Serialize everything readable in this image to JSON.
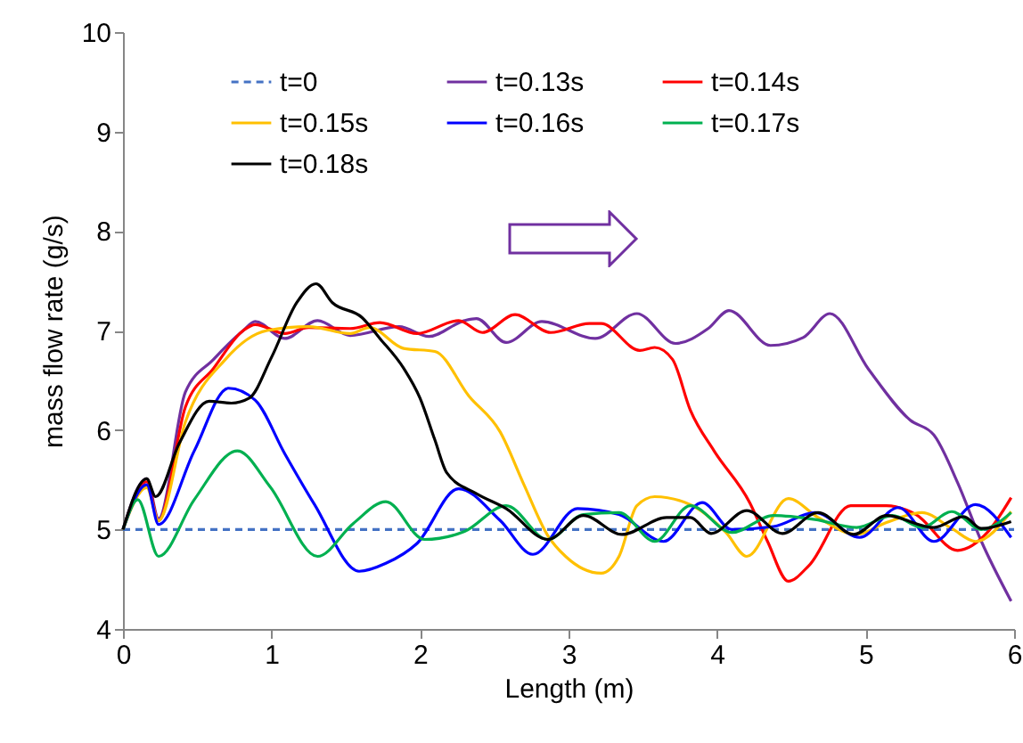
{
  "chart_data": {
    "type": "line",
    "xlabel": "Length (m)",
    "ylabel": "mass flow rate (g/s)",
    "xlim": [
      0,
      6
    ],
    "xticks": [
      0,
      1,
      2,
      3,
      4,
      5,
      6
    ],
    "ylim": [
      4,
      10
    ],
    "yticks": [
      4,
      5,
      6,
      7,
      8,
      9,
      10
    ],
    "grid": false,
    "legend": "top left",
    "marker": "none",
    "series": [
      {
        "name": "t=0",
        "color": "#4472c4",
        "line_style": "dashed",
        "x": [
          0,
          6
        ],
        "values": [
          5,
          5
        ]
      },
      {
        "name": "t=0.13s",
        "color": "#7030a0",
        "x": [
          0,
          0.16,
          0.24,
          0.42,
          0.61,
          0.81,
          0.89,
          1.09,
          1.31,
          1.53,
          1.86,
          2.06,
          2.3,
          2.38,
          2.58,
          2.82,
          3.18,
          3.46,
          3.72,
          3.94,
          4.08,
          4.36,
          4.58,
          4.76,
          5.02,
          5.3,
          5.46,
          5.62,
          5.78,
          5.98
        ],
        "values": [
          5,
          5.51,
          5.11,
          6.38,
          6.71,
          7.0,
          7.09,
          6.92,
          7.1,
          6.95,
          7.04,
          6.94,
          7.1,
          7.12,
          6.88,
          7.09,
          6.92,
          7.17,
          6.87,
          7.02,
          7.2,
          6.85,
          6.93,
          7.17,
          6.61,
          6.1,
          5.95,
          5.47,
          4.88,
          4.28
        ]
      },
      {
        "name": "t=0.14s",
        "color": "#ff0000",
        "x": [
          0,
          0.16,
          0.24,
          0.42,
          0.61,
          0.81,
          0.89,
          1.09,
          1.25,
          1.53,
          1.73,
          1.98,
          2.26,
          2.42,
          2.64,
          2.88,
          3.14,
          3.22,
          3.48,
          3.58,
          3.7,
          3.82,
          3.98,
          4.22,
          4.34,
          4.48,
          4.62,
          4.9,
          5.14,
          5.34,
          5.62,
          5.82,
          5.98
        ],
        "values": [
          5,
          5.48,
          5.09,
          6.23,
          6.62,
          7.0,
          7.06,
          6.97,
          7.03,
          7.02,
          7.08,
          6.97,
          7.1,
          6.98,
          7.16,
          6.98,
          7.07,
          7.07,
          6.8,
          6.83,
          6.71,
          6.2,
          5.79,
          5.27,
          4.88,
          4.48,
          4.64,
          5.24,
          5.24,
          5.15,
          4.79,
          4.97,
          5.32
        ]
      },
      {
        "name": "t=0.15s",
        "color": "#ffc000",
        "x": [
          0,
          0.16,
          0.24,
          0.42,
          0.69,
          0.97,
          1.25,
          1.53,
          1.66,
          1.89,
          2.1,
          2.33,
          2.54,
          2.7,
          2.86,
          2.98,
          3.22,
          3.34,
          3.46,
          3.58,
          3.82,
          4.06,
          4.2,
          4.48,
          4.68,
          4.94,
          5.14,
          5.38,
          5.58,
          5.74,
          5.98
        ],
        "values": [
          5,
          5.42,
          5.09,
          6.08,
          6.71,
          7.0,
          7.04,
          6.97,
          7.03,
          6.82,
          6.79,
          6.34,
          5.98,
          5.45,
          4.94,
          4.73,
          4.56,
          4.73,
          5.24,
          5.33,
          5.25,
          4.97,
          4.73,
          5.31,
          5.12,
          4.95,
          5.07,
          5.17,
          5.01,
          4.88,
          5.18
        ]
      },
      {
        "name": "t=0.16s",
        "color": "#0000ff",
        "x": [
          0,
          0.16,
          0.24,
          0.48,
          0.71,
          0.89,
          1.09,
          1.29,
          1.59,
          1.77,
          1.98,
          2.26,
          2.54,
          2.76,
          3.06,
          3.34,
          3.64,
          3.9,
          4.1,
          4.38,
          4.66,
          4.96,
          5.22,
          5.46,
          5.74,
          5.98
        ],
        "values": [
          5,
          5.45,
          5.05,
          5.79,
          6.42,
          6.3,
          5.76,
          5.25,
          4.58,
          4.66,
          4.86,
          5.41,
          5.09,
          4.75,
          5.21,
          5.15,
          4.88,
          5.27,
          5.0,
          5.03,
          5.17,
          4.92,
          5.22,
          4.88,
          5.25,
          4.92
        ]
      },
      {
        "name": "t=0.17s",
        "color": "#00b050",
        "x": [
          0,
          0.1,
          0.24,
          0.48,
          0.77,
          0.99,
          1.31,
          1.55,
          1.77,
          2.03,
          2.3,
          2.58,
          2.86,
          3.1,
          3.34,
          3.58,
          3.82,
          4.1,
          4.38,
          4.66,
          4.94,
          5.18,
          5.38,
          5.58,
          5.78,
          5.98
        ],
        "values": [
          5,
          5.3,
          4.73,
          5.3,
          5.79,
          5.43,
          4.73,
          5.06,
          5.28,
          4.9,
          4.98,
          5.24,
          4.9,
          5.15,
          5.17,
          4.88,
          5.24,
          4.97,
          5.14,
          5.1,
          5.02,
          5.14,
          5.02,
          5.18,
          5.0,
          5.17
        ]
      },
      {
        "name": "t=0.18s",
        "color": "#000000",
        "x": [
          0,
          0.16,
          0.22,
          0.38,
          0.58,
          0.73,
          0.85,
          1.0,
          1.17,
          1.3,
          1.41,
          1.61,
          1.73,
          1.89,
          2.0,
          2.1,
          2.18,
          2.38,
          2.58,
          2.86,
          3.1,
          3.36,
          3.66,
          3.82,
          3.96,
          4.2,
          4.44,
          4.68,
          4.92,
          5.14,
          5.46,
          5.66,
          5.78,
          5.98
        ],
        "values": [
          5,
          5.51,
          5.33,
          5.87,
          6.29,
          6.27,
          6.32,
          6.73,
          7.28,
          7.47,
          7.28,
          7.13,
          6.92,
          6.62,
          6.32,
          5.9,
          5.57,
          5.36,
          5.21,
          4.9,
          5.14,
          4.95,
          5.12,
          5.12,
          4.96,
          5.19,
          4.96,
          5.17,
          4.95,
          5.14,
          5.02,
          5.13,
          5.01,
          5.08
        ]
      }
    ]
  }
}
